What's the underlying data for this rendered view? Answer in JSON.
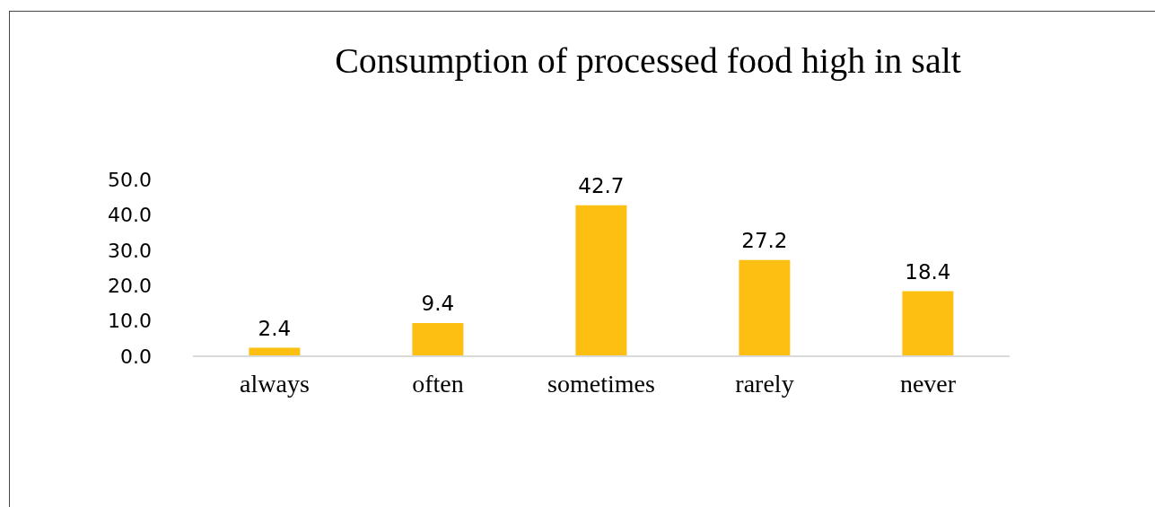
{
  "chart_data": {
    "type": "bar",
    "title": "Consumption of processed food high in salt",
    "categories": [
      "always",
      "often",
      "sometimes",
      "rarely",
      "never"
    ],
    "values": [
      2.4,
      9.4,
      42.7,
      27.2,
      18.4
    ],
    "color": "#fcbf12",
    "ylim": [
      0,
      50
    ],
    "yticks": [
      {
        "value": 0,
        "label": "0.0"
      },
      {
        "value": 10,
        "label": "10.0"
      },
      {
        "value": 20,
        "label": "20.0"
      },
      {
        "value": 30,
        "label": "30.0"
      },
      {
        "value": 40,
        "label": "40.0"
      },
      {
        "value": 50,
        "label": "50.0"
      }
    ],
    "data_labels": true,
    "grid": false,
    "legend": false
  }
}
